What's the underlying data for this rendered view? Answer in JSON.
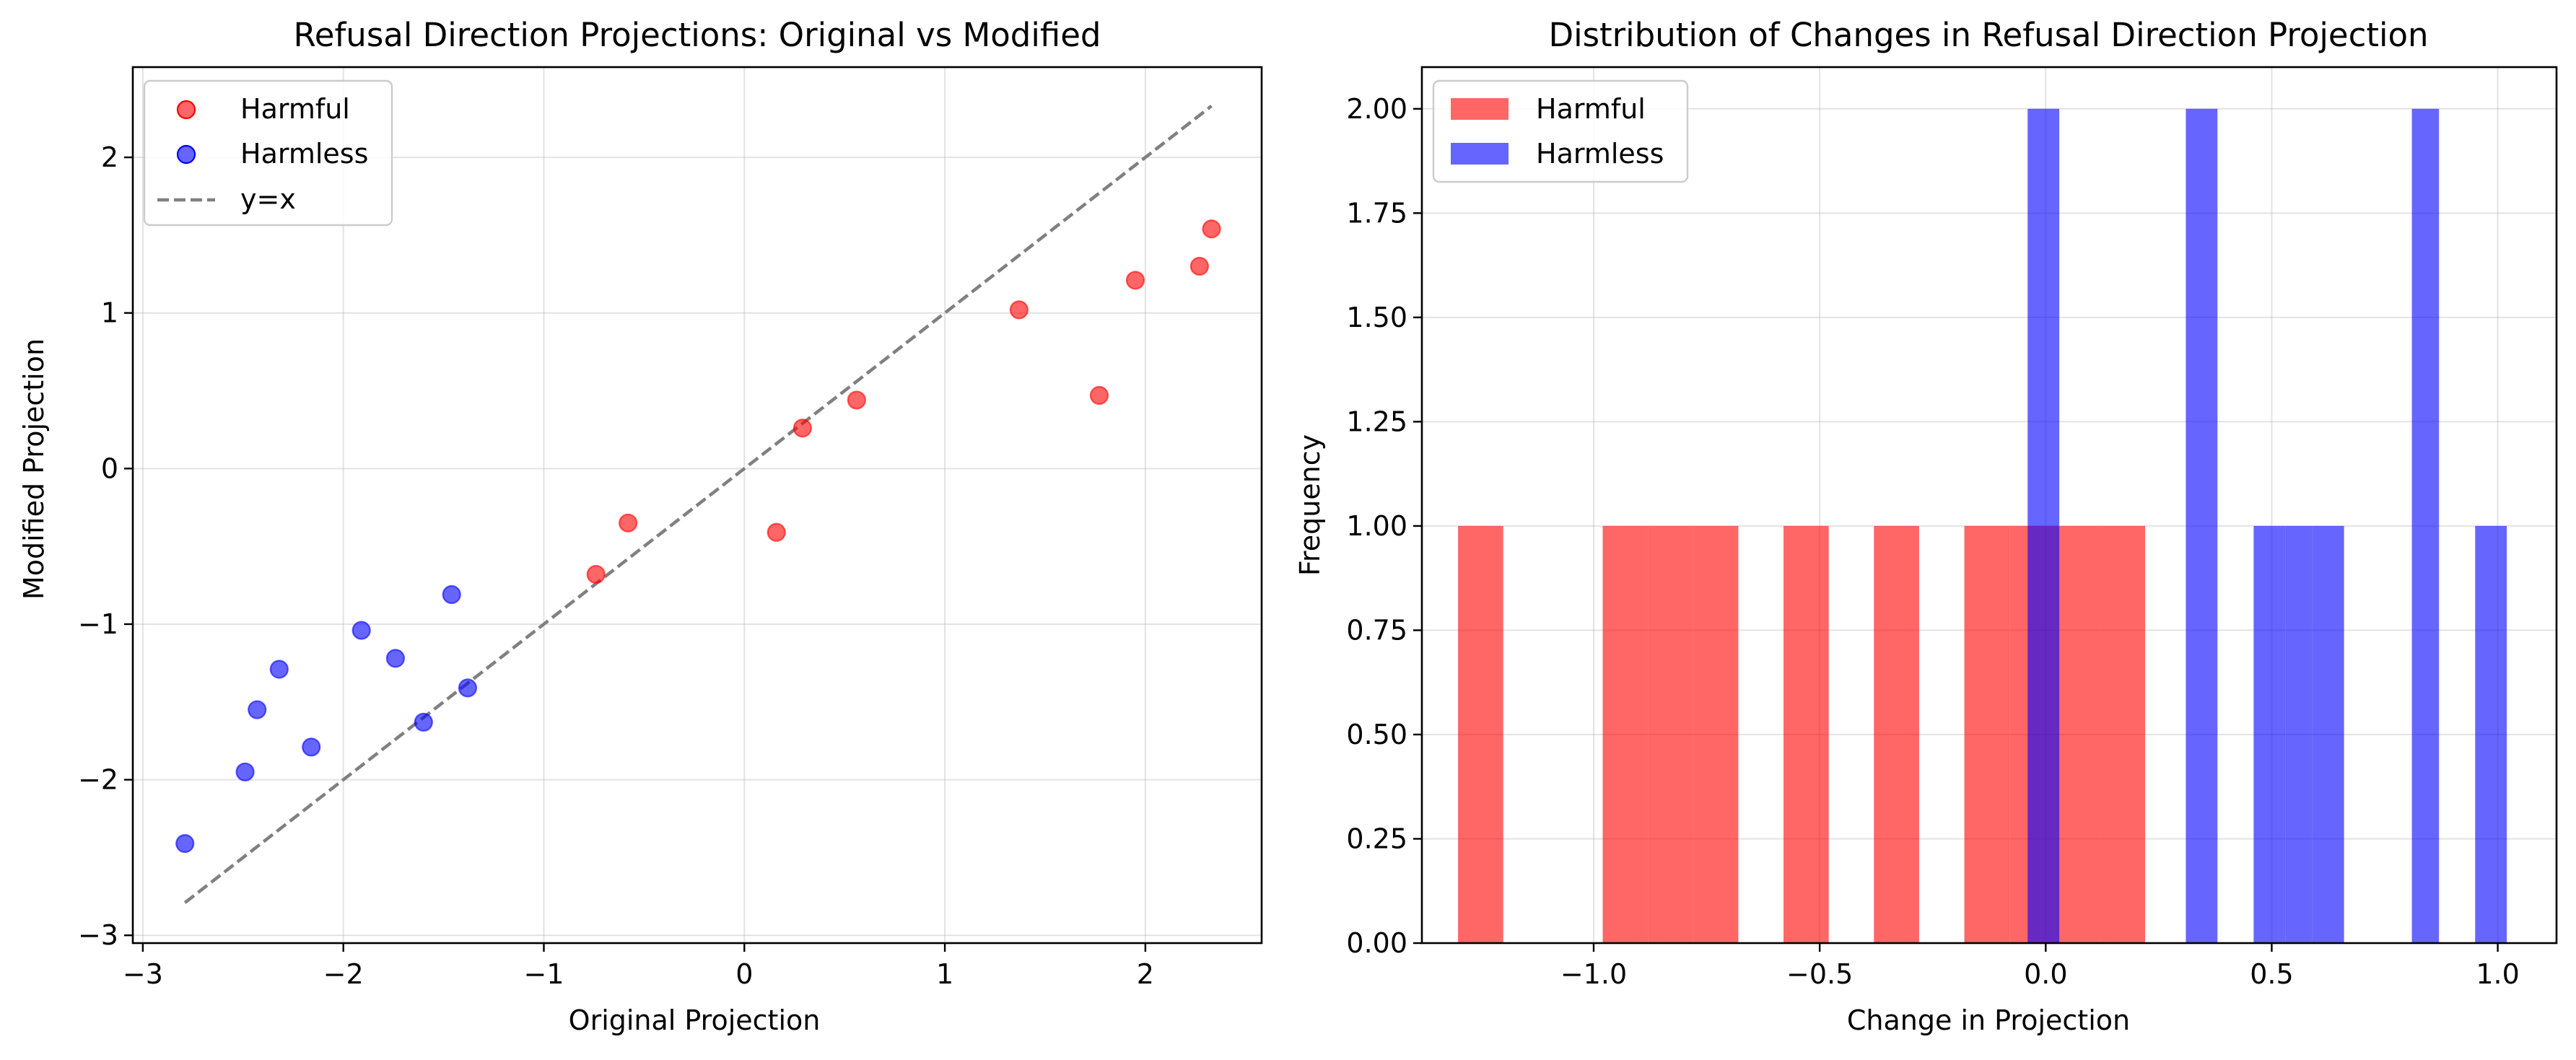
{
  "chart_data": [
    {
      "type": "scatter",
      "title": "Refusal Direction Projections: Original vs Modified",
      "xlabel": "Original Projection",
      "ylabel": "Modified Projection",
      "xlim": [
        -3.05,
        2.58
      ],
      "ylim": [
        -3.05,
        2.58
      ],
      "xticks": [
        -3,
        -2,
        -1,
        0,
        1,
        2
      ],
      "yticks": [
        -3,
        -2,
        -1,
        0,
        1,
        2
      ],
      "xtick_labels": [
        "−3",
        "−2",
        "−1",
        "0",
        "1",
        "2"
      ],
      "ytick_labels": [
        "−3",
        "−2",
        "−1",
        "0",
        "1",
        "2"
      ],
      "grid": true,
      "legend": "top-left",
      "series": [
        {
          "name": "Harmful",
          "color": "#ff0000",
          "points": [
            [
              -0.74,
              -0.68
            ],
            [
              -0.58,
              -0.35
            ],
            [
              0.16,
              -0.41
            ],
            [
              0.29,
              0.26
            ],
            [
              0.56,
              0.44
            ],
            [
              1.37,
              1.02
            ],
            [
              1.77,
              0.47
            ],
            [
              1.95,
              1.21
            ],
            [
              2.27,
              1.3
            ],
            [
              2.33,
              1.54
            ]
          ]
        },
        {
          "name": "Harmless",
          "color": "#0000ff",
          "points": [
            [
              -2.79,
              -2.41
            ],
            [
              -2.49,
              -1.95
            ],
            [
              -2.43,
              -1.55
            ],
            [
              -2.32,
              -1.29
            ],
            [
              -2.16,
              -1.79
            ],
            [
              -1.91,
              -1.04
            ],
            [
              -1.74,
              -1.22
            ],
            [
              -1.6,
              -1.63
            ],
            [
              -1.46,
              -0.81
            ],
            [
              -1.38,
              -1.41
            ]
          ]
        },
        {
          "name": "y=x",
          "color": "#808080",
          "style": "dashed",
          "line": [
            [
              -2.79,
              -2.79
            ],
            [
              2.33,
              2.33
            ]
          ]
        }
      ]
    },
    {
      "type": "bar",
      "title": "Distribution of Changes in Refusal Direction Projection",
      "xlabel": "Change in Projection",
      "ylabel": "Frequency",
      "xlim": [
        -1.38,
        1.13
      ],
      "ylim": [
        0,
        2.1
      ],
      "xticks": [
        -1.0,
        -0.5,
        0.0,
        0.5,
        1.0
      ],
      "yticks": [
        0,
        0.25,
        0.5,
        0.75,
        1.0,
        1.25,
        1.5,
        1.75,
        2.0
      ],
      "xtick_labels": [
        "−1.0",
        "−0.5",
        "0.0",
        "0.5",
        "1.0"
      ],
      "ytick_labels": [
        "0.00",
        "0.25",
        "0.50",
        "0.75",
        "1.00",
        "1.25",
        "1.50",
        "1.75",
        "2.00"
      ],
      "grid": true,
      "legend": "top-left",
      "series": [
        {
          "name": "Harmful",
          "color": "#ff0000",
          "bins": [
            [
              -1.3,
              -1.2,
              1
            ],
            [
              -0.98,
              -0.88,
              1
            ],
            [
              -0.88,
              -0.78,
              1
            ],
            [
              -0.78,
              -0.68,
              1
            ],
            [
              -0.58,
              -0.48,
              1
            ],
            [
              -0.38,
              -0.28,
              1
            ],
            [
              -0.18,
              -0.08,
              1
            ],
            [
              -0.08,
              0.02,
              1
            ],
            [
              0.02,
              0.12,
              1
            ],
            [
              0.12,
              0.22,
              1
            ]
          ]
        },
        {
          "name": "Harmless",
          "color": "#0000ff",
          "bins": [
            [
              -0.04,
              0.03,
              2
            ],
            [
              0.31,
              0.38,
              2
            ],
            [
              0.46,
              0.53,
              1
            ],
            [
              0.53,
              0.59,
              1
            ],
            [
              0.59,
              0.66,
              1
            ],
            [
              0.81,
              0.87,
              2
            ],
            [
              0.95,
              1.02,
              1
            ]
          ]
        }
      ]
    }
  ]
}
